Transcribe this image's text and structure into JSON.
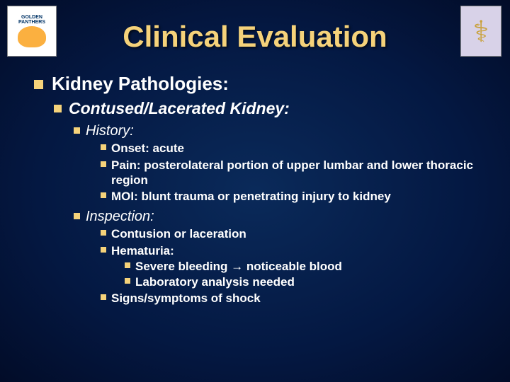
{
  "title": "Clinical Evaluation",
  "logos": {
    "left_label": "GOLDEN PANTHERS",
    "right_symbol": "⚕"
  },
  "l1": "Kidney Pathologies:",
  "l2": "Contused/Lacerated Kidney:",
  "sections": {
    "history": {
      "heading": "History:",
      "items": [
        "Onset:  acute",
        "Pain:  posterolateral portion of upper lumbar and lower thoracic region",
        "MOI:  blunt trauma or penetrating injury to kidney"
      ]
    },
    "inspection": {
      "heading": "Inspection:",
      "items": [
        "Contusion or laceration",
        "Hematuria:",
        "Signs/symptoms of shock"
      ],
      "hematuria_sub": [
        "Severe bleeding → noticeable blood",
        "Laboratory analysis needed"
      ]
    }
  },
  "colors": {
    "title_color": "#f5d27a",
    "bullet_color": "#f5d27a",
    "text_color": "#ffffff",
    "bg_center": "#0a2a5a",
    "bg_edge": "#020c28"
  }
}
